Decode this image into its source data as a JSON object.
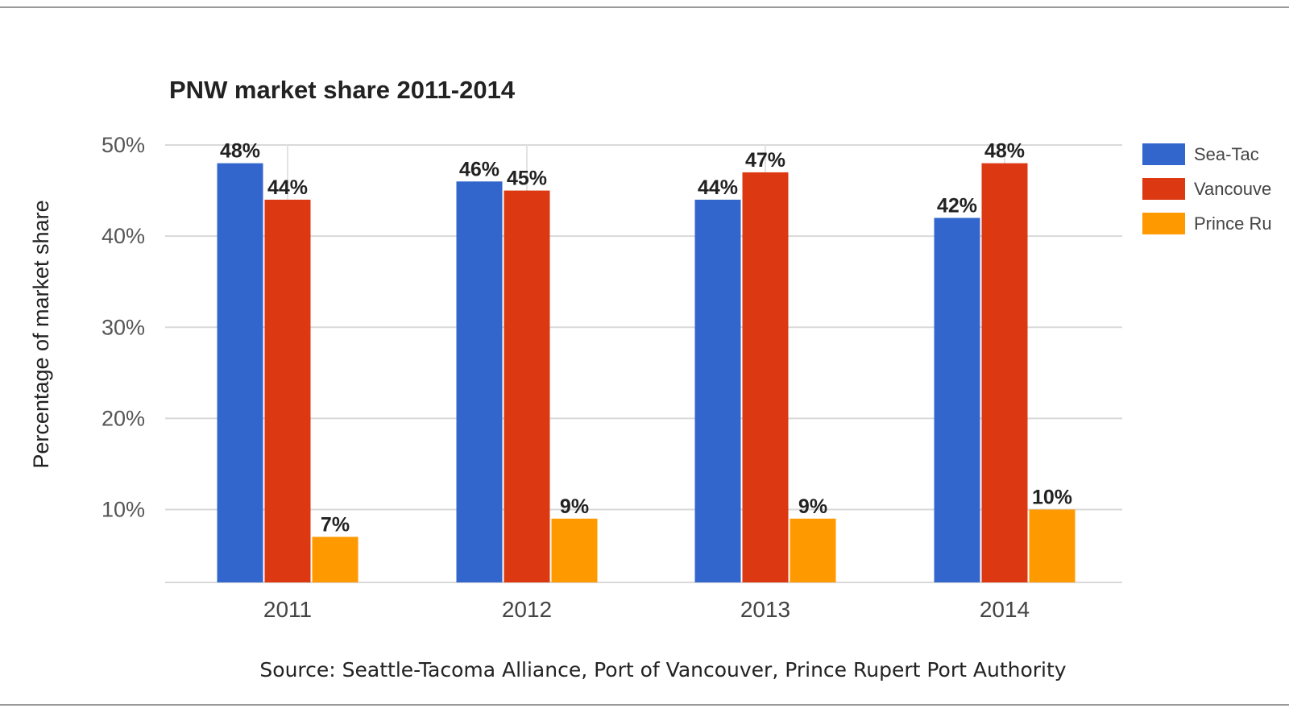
{
  "chart_data": {
    "type": "bar",
    "title": "PNW market share 2011-2014",
    "ylabel": "Percentage of market share",
    "xlabel": "",
    "source": "Source: Seattle-Tacoma Alliance, Port of Vancouver, Prince Rupert Port Authority",
    "categories": [
      "2011",
      "2012",
      "2013",
      "2014"
    ],
    "ylim": [
      2,
      50
    ],
    "yticks": [
      10,
      20,
      30,
      40,
      50
    ],
    "ytick_labels": [
      "10%",
      "20%",
      "30%",
      "40%",
      "50%"
    ],
    "grid": true,
    "legend_position": "right",
    "series": [
      {
        "name": "Sea-Tac",
        "color": "#3366cc",
        "values": [
          48,
          46,
          44,
          42
        ],
        "labels": [
          "48%",
          "46%",
          "44%",
          "42%"
        ]
      },
      {
        "name": "Vancouve",
        "color": "#dc3912",
        "values": [
          44,
          45,
          47,
          48
        ],
        "labels": [
          "44%",
          "45%",
          "47%",
          "48%"
        ]
      },
      {
        "name": "Prince Ru",
        "color": "#ff9900",
        "values": [
          7,
          9,
          9,
          10
        ],
        "labels": [
          "7%",
          "9%",
          "9%",
          "10%"
        ]
      }
    ]
  }
}
